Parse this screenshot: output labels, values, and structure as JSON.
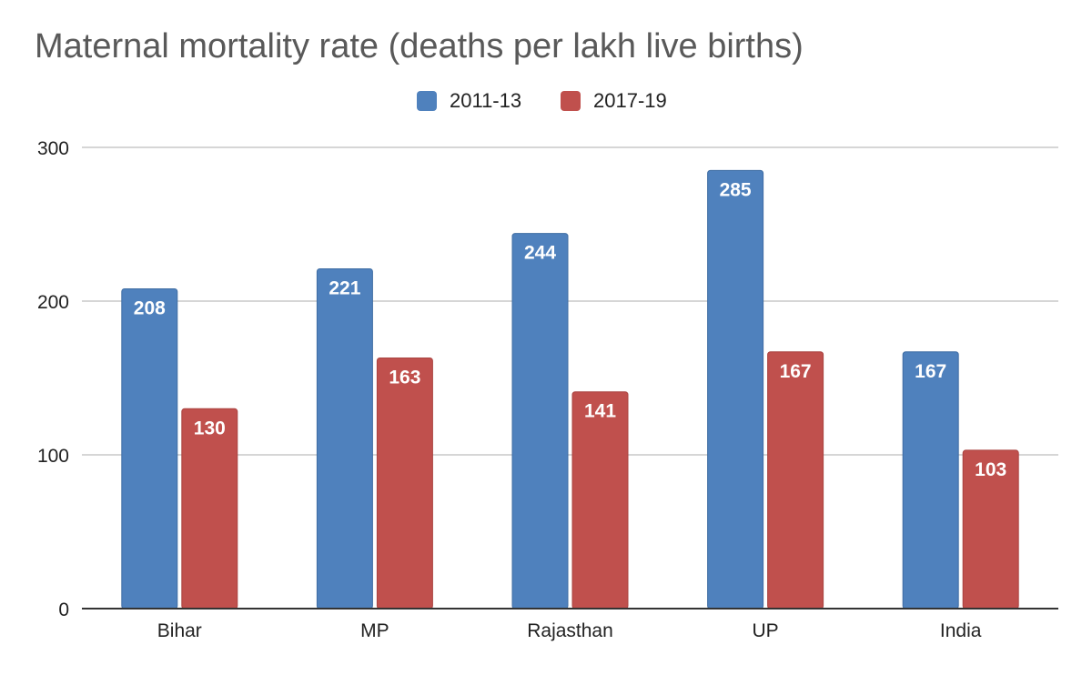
{
  "chart_data": {
    "type": "bar",
    "title": "Maternal mortality rate (deaths per lakh live births)",
    "categories": [
      "Bihar",
      "MP",
      "Rajasthan",
      "UP",
      "India"
    ],
    "series": [
      {
        "name": "2011-13",
        "color": "#4f81bd",
        "values": [
          208,
          221,
          244,
          285,
          167
        ]
      },
      {
        "name": "2017-19",
        "color": "#c0504d",
        "values": [
          130,
          163,
          141,
          167,
          103
        ]
      }
    ],
    "xlabel": "",
    "ylabel": "",
    "ylim": [
      0,
      300
    ],
    "yticks": [
      0,
      100,
      200,
      300
    ],
    "ytick_labels": [
      "0",
      "100",
      "200",
      "300"
    ],
    "grid": true,
    "legend_position": "top-center",
    "data_labels": true
  }
}
